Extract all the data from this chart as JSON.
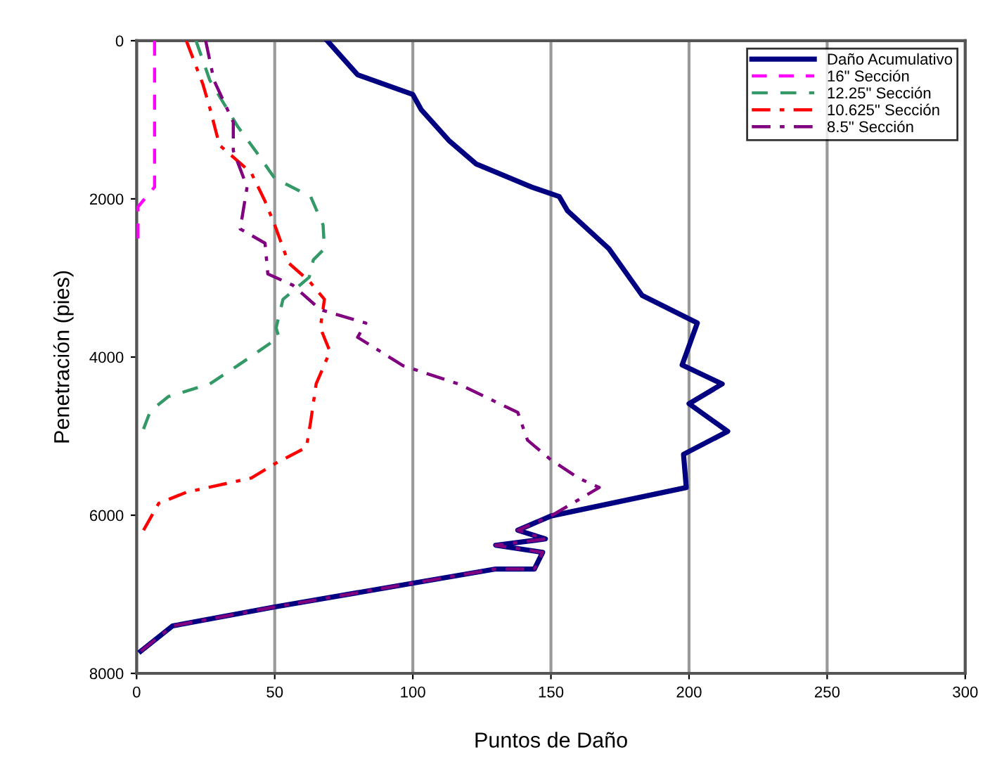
{
  "chart_data": {
    "type": "line",
    "xlabel": "Puntos de Daño",
    "ylabel": "Penetración (pies)",
    "xlim": [
      0,
      300
    ],
    "xticks": [
      0,
      50,
      100,
      150,
      200,
      250,
      300
    ],
    "ylim": [
      8000,
      0
    ],
    "yticks": [
      0,
      2000,
      4000,
      6000,
      8000
    ],
    "grid": "x",
    "legend": "top right",
    "series": [
      {
        "name": "Daño Acumulativo",
        "color": "#000080",
        "line_style": "solid",
        "x": [
          69,
          80,
          100,
          103,
          113,
          123,
          143,
          153,
          156,
          171,
          183,
          203,
          197.5,
          212,
          200,
          214,
          198,
          199,
          150,
          138,
          148,
          130,
          147,
          144,
          130,
          100,
          50,
          13,
          1.5
        ],
        "values": [
          0,
          430,
          680,
          870,
          1260,
          1560,
          1850,
          1970,
          2150,
          2630,
          3220,
          3570,
          4100,
          4340,
          4590,
          4940,
          5230,
          5650,
          6010,
          6190,
          6300,
          6380,
          6470,
          6680,
          6680,
          6860,
          7160,
          7400,
          7720
        ]
      },
      {
        "name": "16\" Sección",
        "color": "#ff00ff",
        "line_style": "dashed",
        "x": [
          6.5,
          6.5,
          0.5,
          0.5
        ],
        "values": [
          0,
          1850,
          2100,
          2500
        ]
      },
      {
        "name": "12.25\" Sección",
        "color": "#339966",
        "line_style": "dashed",
        "x": [
          21.5,
          26.5,
          36.5,
          43,
          50,
          63,
          67.5,
          68,
          64,
          62.5,
          53,
          50.5,
          51.5,
          36.5,
          26.5,
          11.5,
          5,
          2.5
        ],
        "values": [
          0,
          500,
          1080,
          1390,
          1740,
          1970,
          2330,
          2630,
          2770,
          2990,
          3270,
          3630,
          3750,
          4110,
          4340,
          4500,
          4680,
          4910
        ]
      },
      {
        "name": "10.625\" Sección",
        "color": "#ff0000",
        "line_style": "dashdot",
        "x": [
          18,
          24,
          26.5,
          30,
          41.5,
          46.5,
          50,
          55,
          62.5,
          68,
          66.5,
          70,
          65,
          63,
          61.5,
          50,
          41.5,
          18,
          8,
          2.5
        ],
        "values": [
          0,
          550,
          850,
          1320,
          1670,
          2030,
          2330,
          2810,
          3040,
          3270,
          3630,
          3930,
          4340,
          4820,
          5140,
          5350,
          5530,
          5710,
          5850,
          6190
        ]
      },
      {
        "name": "8.5\" Sección",
        "color": "#800080",
        "line_style": "dashdot",
        "x": [
          25,
          28,
          35,
          35,
          40,
          37.5,
          46.5,
          47.5,
          56.5,
          66.5,
          83,
          80,
          96.5,
          116.5,
          138,
          141.5,
          150,
          160,
          167.5,
          150,
          138,
          148,
          130,
          147,
          144,
          130,
          100,
          50,
          13,
          1.5
        ],
        "values": [
          0,
          500,
          1030,
          1390,
          1850,
          2380,
          2560,
          2950,
          3090,
          3400,
          3570,
          3750,
          4110,
          4340,
          4700,
          5050,
          5300,
          5530,
          5650,
          6010,
          6190,
          6300,
          6380,
          6470,
          6680,
          6680,
          6860,
          7160,
          7400,
          7720
        ]
      }
    ]
  }
}
